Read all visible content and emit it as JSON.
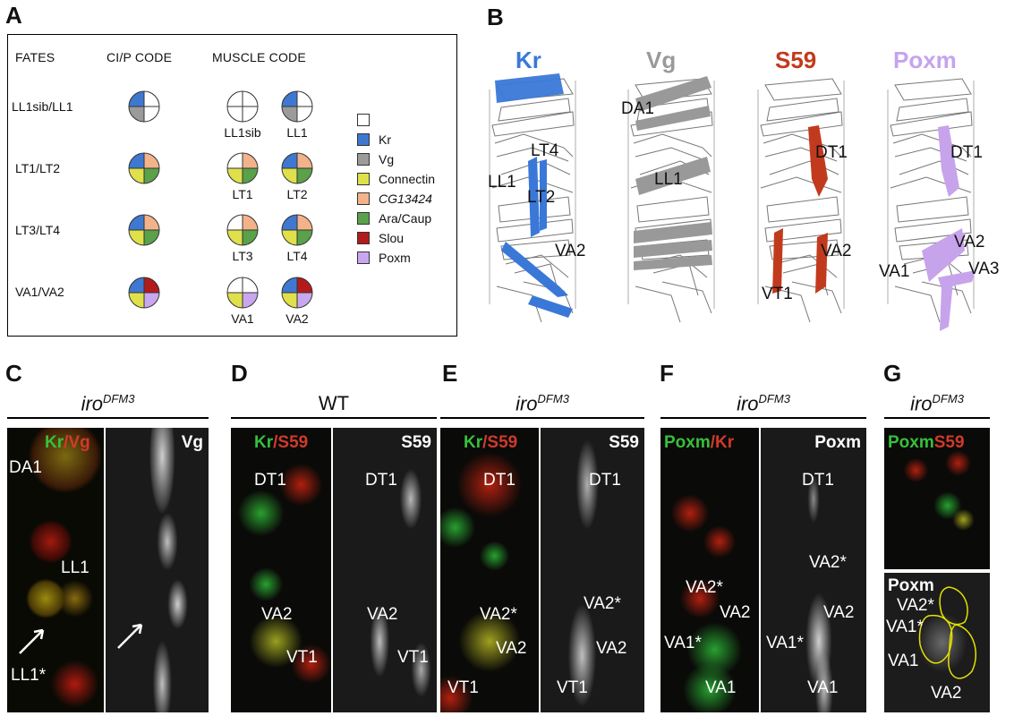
{
  "panels": {
    "A": "A",
    "B": "B",
    "C": "C",
    "D": "D",
    "E": "E",
    "F": "F",
    "G": "G"
  },
  "panelA": {
    "headers": {
      "fates": "FATES",
      "cip": "CI/P CODE",
      "muscle": "MUSCLE CODE"
    },
    "rows": [
      {
        "fate": "LL1sib/LL1",
        "m1": "LL1sib",
        "m2": "LL1"
      },
      {
        "fate": "LT1/LT2",
        "m1": "LT1",
        "m2": "LT2"
      },
      {
        "fate": "LT3/LT4",
        "m1": "LT3",
        "m2": "LT4"
      },
      {
        "fate": "VA1/VA2",
        "m1": "VA1",
        "m2": "VA2"
      }
    ],
    "legend": [
      {
        "label": "",
        "color": "#ffffff"
      },
      {
        "label": "Kr",
        "color": "#3f78d0"
      },
      {
        "label": "Vg",
        "color": "#9b9b9b"
      },
      {
        "label": "Connectin",
        "color": "#dfe04a"
      },
      {
        "label": "CG13424",
        "color": "#f3b38a"
      },
      {
        "label": "Ara/Caup",
        "color": "#5aa14a"
      },
      {
        "label": "Slou",
        "color": "#b31b1b"
      },
      {
        "label": "Poxm",
        "color": "#c9a7ee"
      }
    ]
  },
  "panelB": {
    "genes": [
      {
        "name": "Kr",
        "color": "#3a78d8"
      },
      {
        "name": "Vg",
        "color": "#9a9a9a"
      },
      {
        "name": "S59",
        "color": "#c23a1d"
      },
      {
        "name": "Poxm",
        "color": "#c7a3ec"
      }
    ],
    "labels": {
      "kr": [
        "LT4",
        "LL1",
        "LT2",
        "VA2"
      ],
      "vg": [
        "DA1",
        "LL1"
      ],
      "s59": [
        "DT1",
        "VA2",
        "VT1"
      ],
      "poxm": [
        "DT1",
        "VA2",
        "VA1",
        "VA3"
      ]
    }
  },
  "genotype": {
    "mut_base": "iro",
    "mut_sup": "DFM3",
    "wt": "WT"
  },
  "panelC": {
    "left_a": "Kr",
    "sep": "/",
    "left_b": "Vg",
    "right": "Vg",
    "labels": [
      "DA1",
      "LL1",
      "LL1*"
    ]
  },
  "panelD": {
    "left_a": "Kr",
    "sep": "/",
    "left_b": "S59",
    "right": "S59",
    "left_labels": [
      "DT1",
      "VA2",
      "VT1"
    ],
    "right_labels": [
      "DT1",
      "VA2",
      "VT1"
    ]
  },
  "panelE": {
    "left_a": "Kr",
    "sep": "/",
    "left_b": "S59",
    "right": "S59",
    "left_labels": [
      "DT1",
      "VA2*",
      "VA2",
      "VT1"
    ],
    "right_labels": [
      "DT1",
      "VA2*",
      "VA2",
      "VT1"
    ]
  },
  "panelF": {
    "left_a": "Poxm",
    "sep": "/",
    "left_b": "Kr",
    "right": "Poxm",
    "left_labels": [
      "VA2*",
      "VA2",
      "VA1*",
      "VA1"
    ],
    "right_labels": [
      "DT1",
      "VA2*",
      "VA2",
      "VA1*",
      "VA1"
    ]
  },
  "panelG": {
    "top_a": "Poxm",
    "top_b": "S59",
    "bottom": "Poxm",
    "labels": [
      "VA2*",
      "VA1*",
      "VA1",
      "VA2"
    ]
  }
}
